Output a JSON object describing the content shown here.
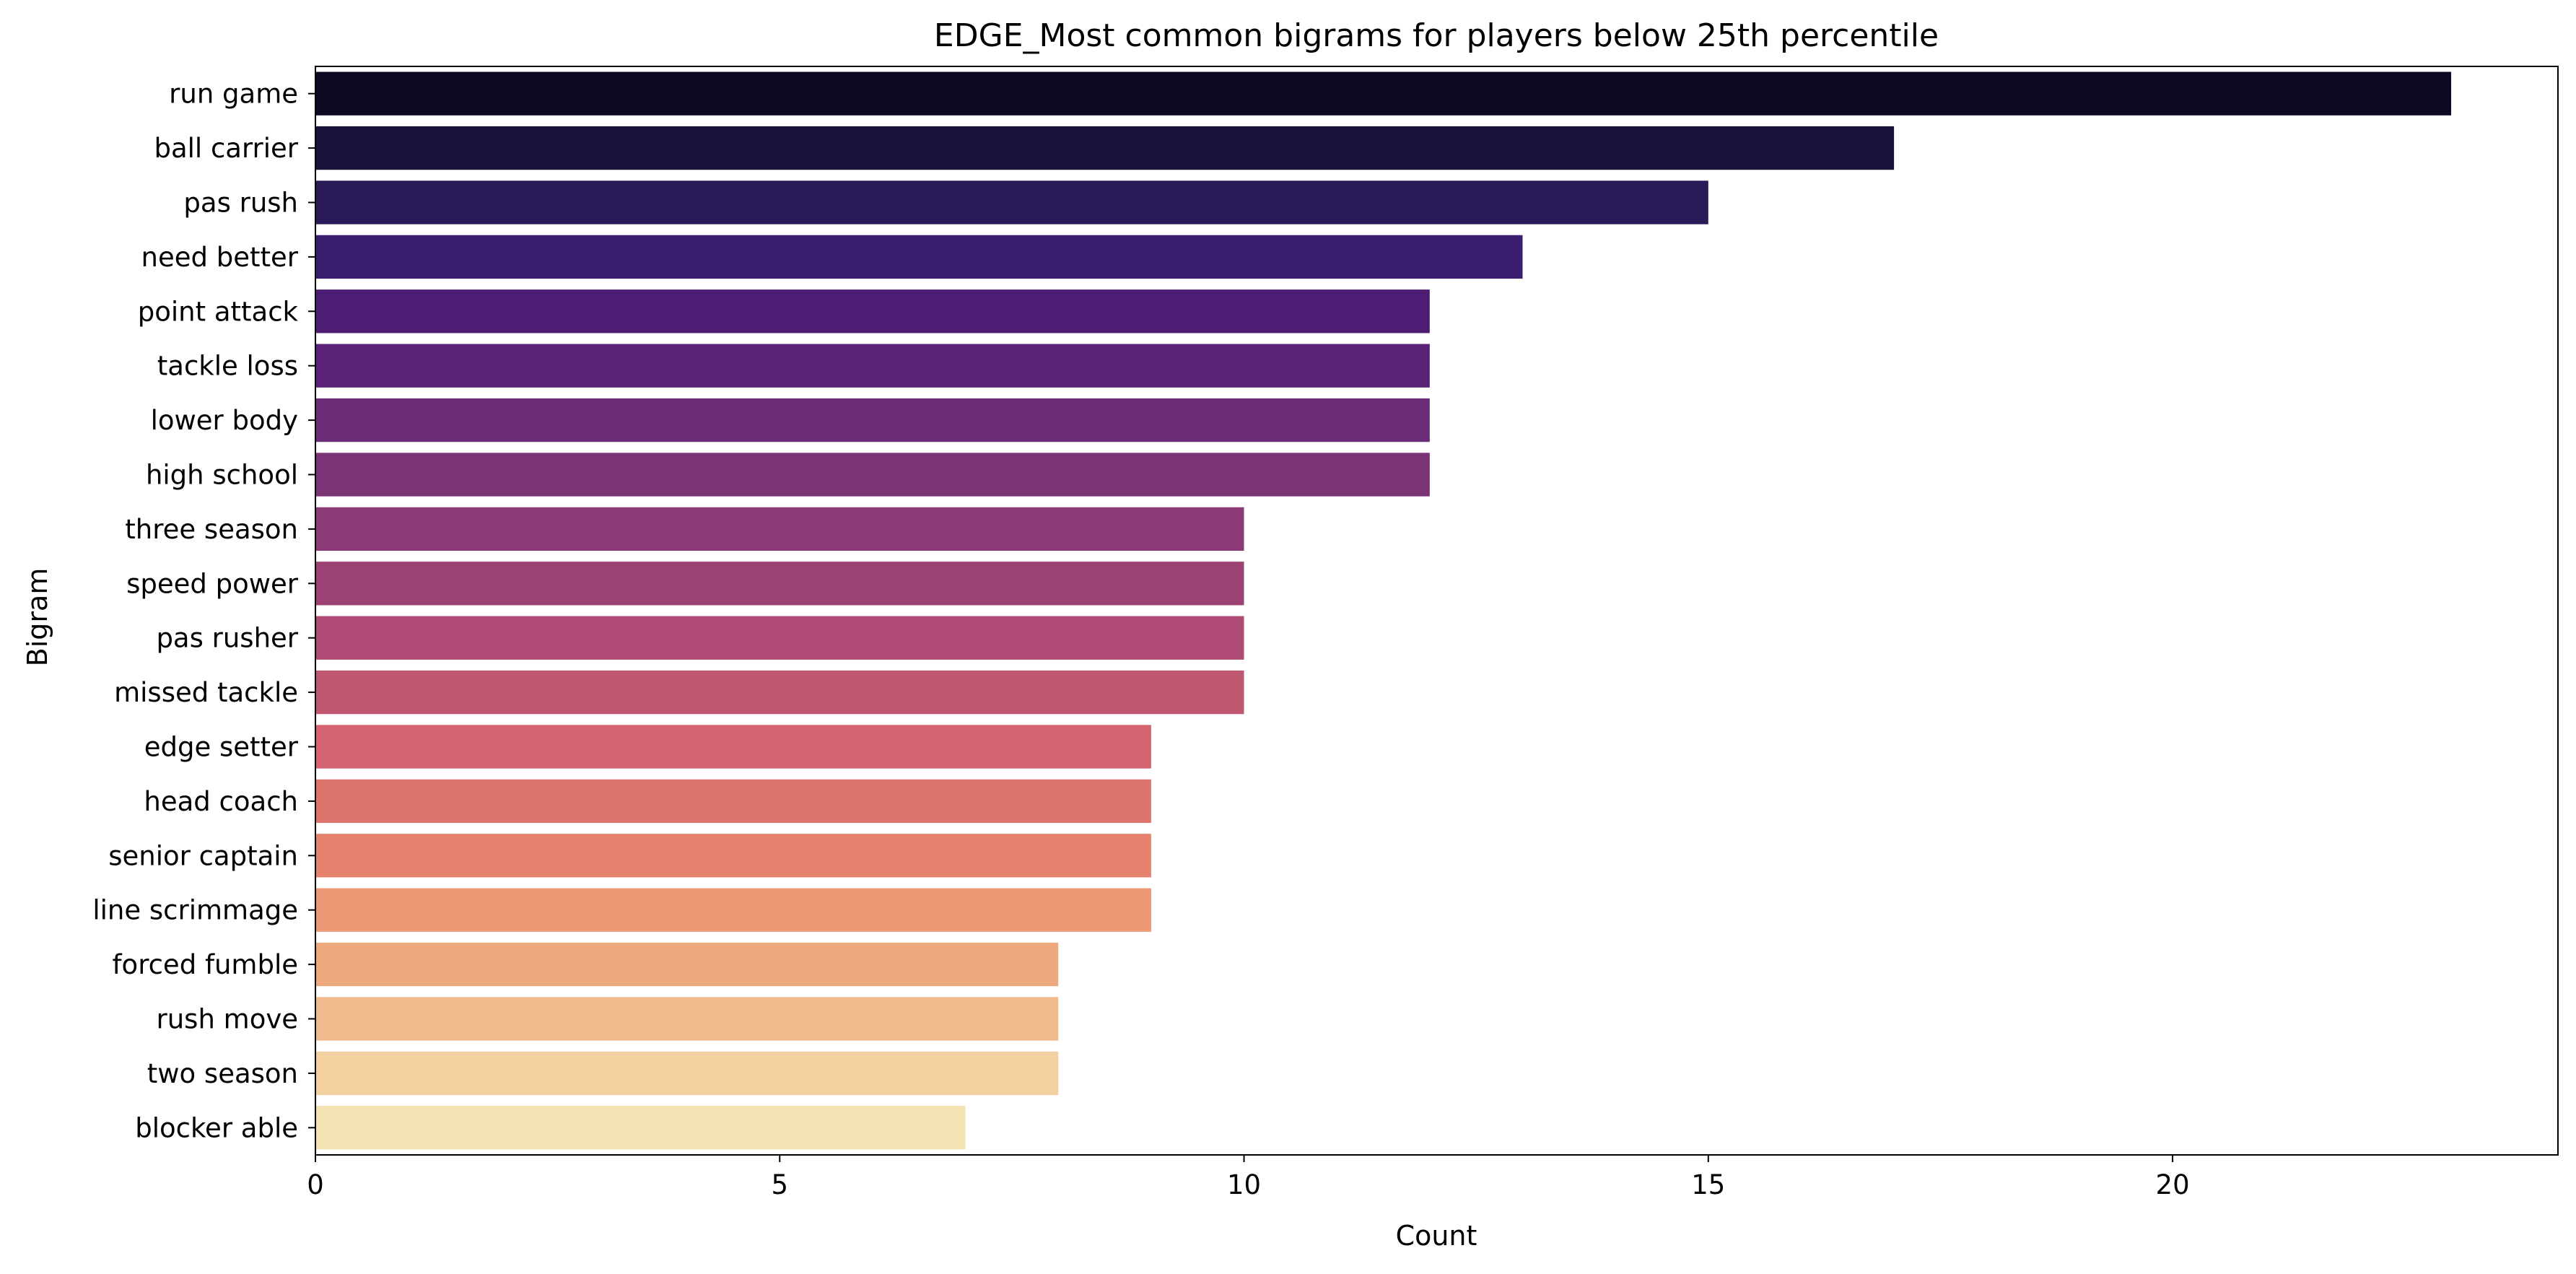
{
  "chart_data": {
    "type": "bar",
    "orientation": "horizontal",
    "title": "EDGE_Most common bigrams for players below 25th percentile",
    "xlabel": "Count",
    "ylabel": "Bigram",
    "xlim": [
      0,
      24.15
    ],
    "xticks": [
      0,
      5,
      10,
      15,
      20
    ],
    "grid": false,
    "categories": [
      "run game",
      "ball carrier",
      "pas rush",
      "need better",
      "point attack",
      "tackle loss",
      "lower body",
      "high school",
      "three season",
      "speed power",
      "pas rusher",
      "missed tackle",
      "edge setter",
      "head coach",
      "senior captain",
      "line scrimmage",
      "forced fumble",
      "rush move",
      "two season",
      "blocker able"
    ],
    "values": [
      23,
      17,
      15,
      13,
      12,
      12,
      12,
      12,
      10,
      10,
      10,
      10,
      9,
      9,
      9,
      9,
      8,
      8,
      8,
      7
    ],
    "colors": [
      "#0b0924",
      "#1a1238",
      "#2a1a58",
      "#3a1d6e",
      "#4d1d74",
      "#5a2176",
      "#6a2c76",
      "#7a3374",
      "#8c3a76",
      "#9c4174",
      "#ae4a74",
      "#c05770",
      "#d3636e",
      "#de746e",
      "#e6836f",
      "#eb9975",
      "#eda97e",
      "#f0bc8d",
      "#f3d09f",
      "#f4e2b2"
    ]
  }
}
